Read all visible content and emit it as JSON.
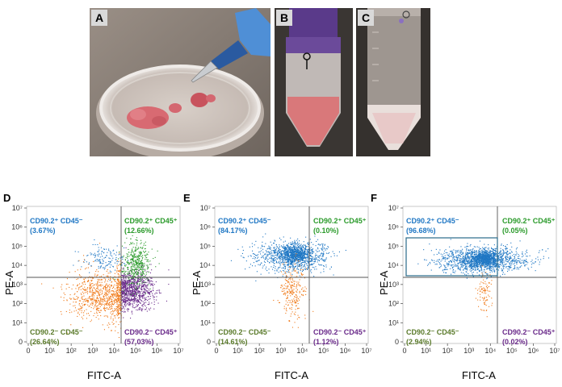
{
  "photos": [
    {
      "label": "A"
    },
    {
      "label": "B"
    },
    {
      "label": "C"
    }
  ],
  "colors": {
    "blue": "#1f77c4",
    "green": "#2a9a2a",
    "orange": "#f07a1a",
    "purple": "#6a2a8a",
    "gate_box": "#2a6a8a"
  },
  "x_axis_label": "FITC-A",
  "y_axis_label": "PE-A",
  "tick_labels": {
    "x": [
      "0",
      "10¹",
      "10²",
      "10³",
      "10⁴",
      "10⁵",
      "10⁶",
      "10⁷"
    ],
    "y": [
      "10⁷",
      "10⁶",
      "10⁵",
      "10⁴",
      "10³",
      "10²",
      "10¹",
      "0"
    ]
  },
  "quadrant_labels": {
    "ul": "CD90.2⁺ CD45⁻",
    "ur": "CD90.2⁺ CD45⁺",
    "ll": "CD90.2⁻ CD45⁻",
    "lr": "CD90.2⁻ CD45⁺"
  },
  "plots": [
    {
      "label": "D",
      "ul_pct": "(3.67%)",
      "ur_pct": "(12.66%)",
      "ll_pct": "(26.64%)",
      "lr_pct": "(57.03%)"
    },
    {
      "label": "E",
      "ul_pct": "(84.17%)",
      "ur_pct": "(0.10%)",
      "ll_pct": "(14.61%)",
      "lr_pct": "(1.12%)"
    },
    {
      "label": "F",
      "ul_pct": "(96.68%)",
      "ur_pct": "(0.05%)",
      "ll_pct": "(2.94%)",
      "lr_pct": "(0.02%)"
    }
  ],
  "chart_data": [
    {
      "type": "scatter",
      "title": "D",
      "xlabel": "FITC-A",
      "ylabel": "PE-A",
      "x_scale": "log",
      "y_scale": "log",
      "xlim": [
        0,
        10000000
      ],
      "ylim": [
        0,
        10000000
      ],
      "quadrants": {
        "CD90.2+ CD45-": 3.67,
        "CD90.2+ CD45+": 12.66,
        "CD90.2- CD45-": 26.64,
        "CD90.2- CD45+": 57.03
      }
    },
    {
      "type": "scatter",
      "title": "E",
      "xlabel": "FITC-A",
      "ylabel": "PE-A",
      "x_scale": "log",
      "y_scale": "log",
      "xlim": [
        0,
        10000000
      ],
      "ylim": [
        0,
        10000000
      ],
      "quadrants": {
        "CD90.2+ CD45-": 84.17,
        "CD90.2+ CD45+": 0.1,
        "CD90.2- CD45-": 14.61,
        "CD90.2- CD45+": 1.12
      }
    },
    {
      "type": "scatter",
      "title": "F",
      "xlabel": "FITC-A",
      "ylabel": "PE-A",
      "x_scale": "log",
      "y_scale": "log",
      "xlim": [
        0,
        10000000
      ],
      "ylim": [
        0,
        10000000
      ],
      "quadrants": {
        "CD90.2+ CD45-": 96.68,
        "CD90.2+ CD45+": 0.05,
        "CD90.2- CD45-": 2.94,
        "CD90.2- CD45+": 0.02
      }
    }
  ]
}
